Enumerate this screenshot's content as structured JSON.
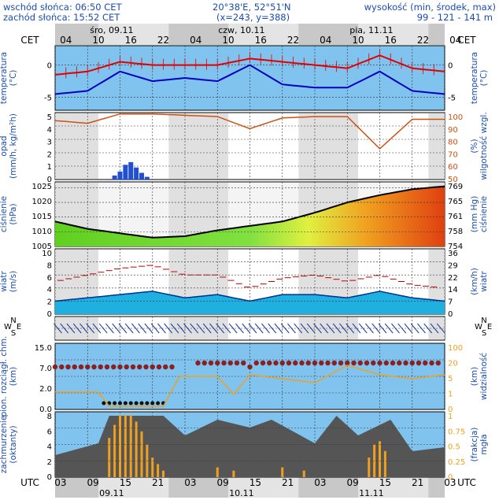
{
  "header": {
    "sunrise": "wschód słońca: 06:50 CET",
    "sunset": "zachód słońca: 15:52 CET",
    "coords": "20°38'E, 52°51'N",
    "grid": "(x=243, y=388)",
    "elev_label": "wysokość (min, środek, max)",
    "elev_values": "99 - 121 - 141 m"
  },
  "timebar": {
    "tz_top": "CET",
    "tz_bottom": "UTC",
    "days_top": [
      "śro, 09.11",
      "czw, 10.11",
      "pia, 11.11"
    ],
    "days_bottom": [
      "09.11",
      "10.11",
      "11.11"
    ],
    "hours_top": [
      "04",
      "10",
      "16",
      "22",
      "04",
      "10",
      "16",
      "22",
      "04",
      "10",
      "16",
      "22",
      "04"
    ],
    "hours_bottom": [
      "03",
      "09",
      "15",
      "21",
      "03",
      "09",
      "15",
      "21",
      "03",
      "09",
      "15",
      "21",
      "03"
    ]
  },
  "panels": {
    "temperature": {
      "left": "temperatura\n(°C)",
      "right": "temperatura\n(°C)",
      "ticks": [
        "0",
        "-5"
      ]
    },
    "precip": {
      "left": "opad\n(mm/h, kg/m²h)",
      "right": "(%)\nwilgotność wzgl.",
      "ticks_left": [
        "5",
        "4",
        "3",
        "2",
        "1",
        "0"
      ],
      "ticks_right": [
        "100",
        "90",
        "80",
        "70",
        "60",
        "50"
      ]
    },
    "pressure": {
      "left": "ciśnienie\n(hPa)",
      "right": "(mm Hg)\nciśnienie",
      "ticks_left": [
        "1025",
        "1020",
        "1015",
        "1010",
        "1005"
      ],
      "ticks_right": [
        "769",
        "765",
        "761",
        "758",
        "754"
      ]
    },
    "wind": {
      "left": "wiatr\n(m/s)",
      "right": "(km/h)\nwiatr",
      "ticks_left": [
        "10",
        "8",
        "6",
        "4",
        "2",
        "0"
      ],
      "ticks_right": [
        "36",
        "29",
        "22",
        "14",
        "7",
        "0"
      ]
    },
    "direction": {
      "compass_left": [
        "N",
        "W",
        "E",
        "S"
      ],
      "compass_right": [
        "N",
        "W",
        "E",
        "S"
      ]
    },
    "cloudbase": {
      "left": "pion. rozciągł. chm.\n(km)",
      "right": "(km)\nwidzialność",
      "ticks_left": [
        "15.0",
        "7.0",
        "2.0",
        "0.0"
      ],
      "ticks_right": [
        "100",
        "20",
        "5",
        "1",
        "0"
      ]
    },
    "cover": {
      "left": "zachmurzenie\n(oktanty)",
      "right": "(frakcja)\nmgła",
      "ticks_left": [
        "8",
        "6",
        "4",
        "2",
        "0"
      ],
      "ticks_right": [
        "1",
        "0.75",
        "0.5",
        "0.25",
        "0"
      ]
    }
  },
  "colors": {
    "temp_max": "#e00000",
    "temp_mean": "#0000c0",
    "humidity": "#d05010",
    "pressure_line": "#000000",
    "wind_fill": "#20b0e0",
    "gust": "#c00000",
    "fog_bar": "#f0a020",
    "axis_text": "#1a4cb0"
  },
  "chart_data": [
    {
      "type": "line",
      "title": "temperatura",
      "x_hours": [
        0,
        6,
        12,
        18,
        24,
        30,
        36,
        42,
        48,
        54,
        60,
        66,
        72
      ],
      "series": [
        {
          "values": [
            -1.5,
            -1,
            0.5,
            0,
            0,
            0,
            1,
            0.5,
            0,
            -0.5,
            1.5,
            -0.5,
            -1
          ]
        },
        {
          "values": [
            -4.5,
            -4,
            -1,
            -2.5,
            -2,
            -2.5,
            0,
            -3,
            -3.5,
            -3.5,
            -1,
            -4,
            -4.5
          ]
        }
      ],
      "ylim": [
        -7,
        3
      ]
    },
    {
      "type": "line",
      "title": "wilgotność wzgl.",
      "x_hours": [
        0,
        6,
        12,
        18,
        24,
        30,
        36,
        42,
        48,
        54,
        60,
        66,
        72
      ],
      "series": [
        {
          "values": [
            94,
            92,
            99,
            99,
            98,
            97,
            88,
            96,
            97,
            97,
            73,
            95,
            95
          ]
        }
      ],
      "ylim": [
        50,
        100
      ]
    },
    {
      "type": "area",
      "title": "ciśnienie",
      "x_hours": [
        0,
        6,
        12,
        18,
        24,
        30,
        36,
        42,
        48,
        54,
        60,
        66,
        72
      ],
      "series": [
        {
          "values": [
            1013.5,
            1011,
            1009.5,
            1008,
            1008.5,
            1010.5,
            1012,
            1013.5,
            1016.5,
            1020,
            1022.5,
            1024.5,
            1025.5
          ]
        }
      ],
      "ylim": [
        1005,
        1027
      ]
    },
    {
      "type": "area",
      "title": "wiatr",
      "x_hours": [
        0,
        6,
        12,
        18,
        24,
        30,
        36,
        42,
        48,
        54,
        60,
        66,
        72
      ],
      "series": [
        {
          "values": [
            2,
            2.5,
            3,
            3.5,
            2.5,
            3,
            2,
            3,
            3,
            2.5,
            3.5,
            2.5,
            2
          ]
        },
        {
          "values": [
            5,
            6,
            7,
            7.5,
            6,
            6,
            4,
            5.5,
            6,
            5,
            6,
            4.5,
            4
          ]
        }
      ],
      "ylim": [
        0,
        10
      ]
    },
    {
      "type": "bar",
      "title": "opad",
      "x_hours": [
        11,
        12,
        13,
        14,
        15,
        16,
        17
      ],
      "values": [
        0.3,
        0.6,
        1.1,
        1.3,
        0.9,
        0.5,
        0.2
      ],
      "ylim": [
        0,
        5
      ]
    },
    {
      "type": "bar",
      "title": "mgła",
      "x_hours": [
        10,
        11,
        12,
        13,
        14,
        15,
        16,
        17,
        18,
        19,
        20,
        30,
        33,
        42,
        46,
        58,
        59,
        60,
        61
      ],
      "values": [
        0.6,
        0.8,
        0.95,
        0.95,
        0.95,
        0.85,
        0.7,
        0.5,
        0.3,
        0.2,
        0.1,
        0.15,
        0.1,
        0.15,
        0.1,
        0.3,
        0.5,
        0.55,
        0.4
      ],
      "ylim": [
        0,
        1
      ]
    }
  ]
}
